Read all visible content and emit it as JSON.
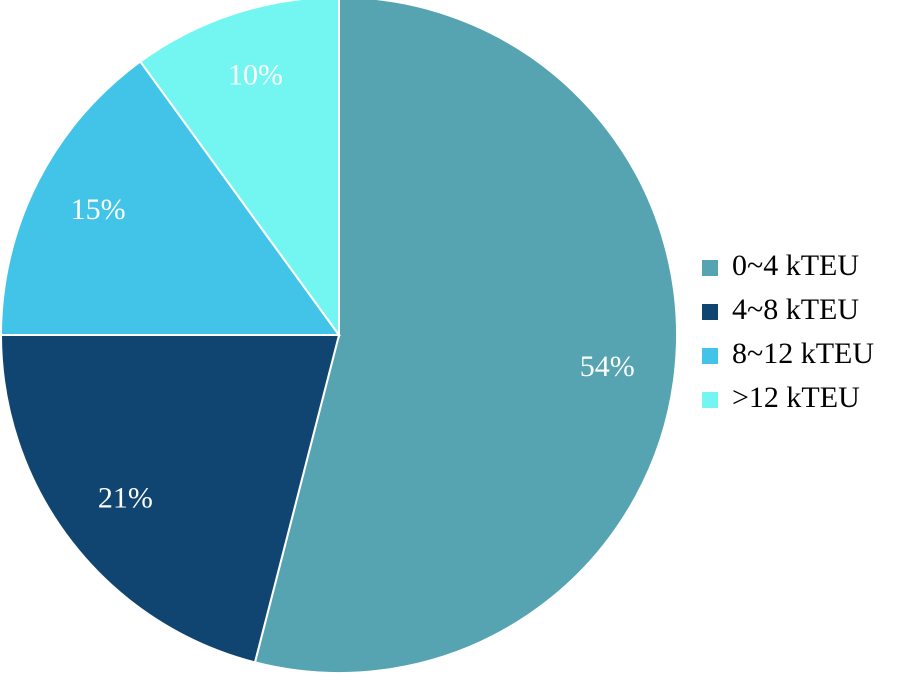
{
  "chart_data": {
    "type": "pie",
    "categories": [
      "0~4 kTEU",
      "4~8 kTEU",
      "8~12 kTEU",
      ">12 kTEU"
    ],
    "values": [
      54,
      21,
      15,
      10
    ],
    "labels": [
      "54%",
      "21%",
      "15%",
      "10%"
    ],
    "colors": [
      "#56A3B2",
      "#114571",
      "#42C4E9",
      "#73F6F2"
    ],
    "start_angle_deg": 0,
    "direction": "clockwise",
    "legend_position": "right"
  }
}
